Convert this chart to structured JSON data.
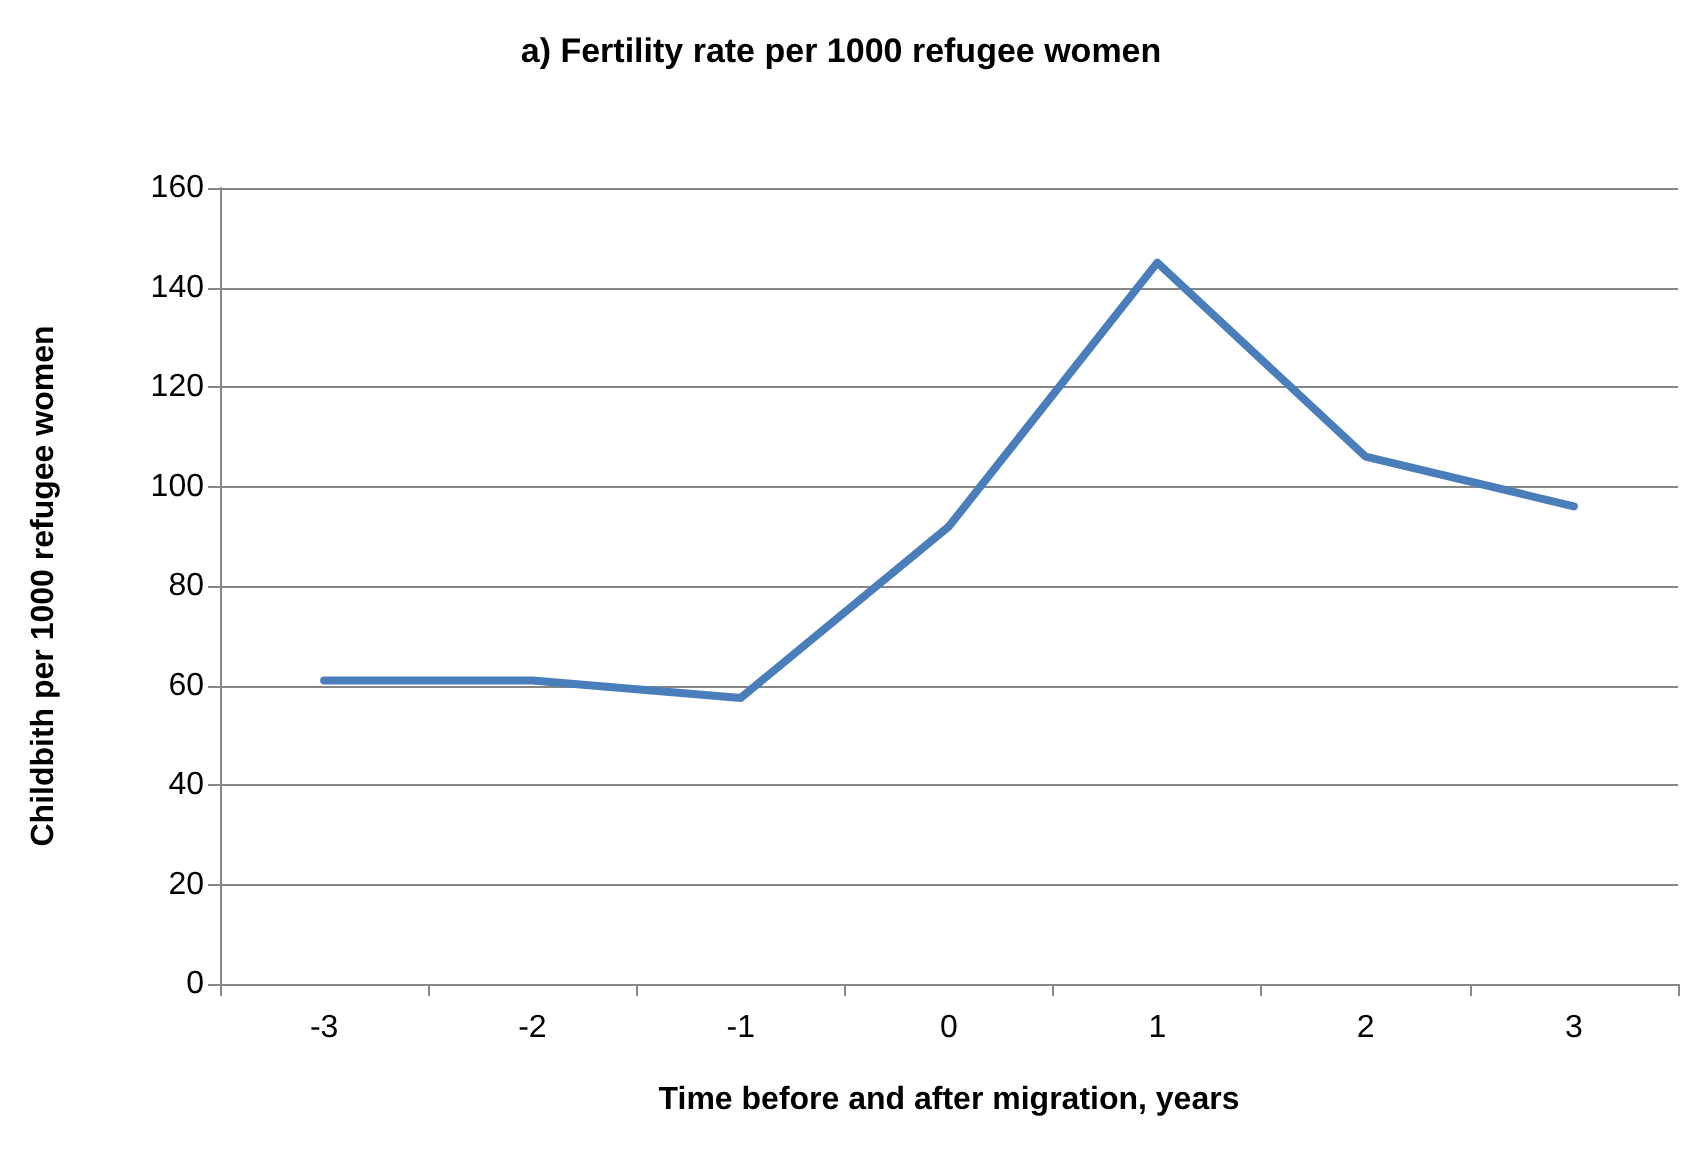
{
  "chart_data": {
    "type": "line",
    "title": "a) Fertility rate per 1000 refugee women",
    "xlabel": "Time before and after migration, years",
    "ylabel": "Childbith per 1000 refugee women",
    "categories": [
      "-3",
      "-2",
      "-1",
      "0",
      "1",
      "2",
      "3"
    ],
    "series": [
      {
        "color": "#4a7ebb",
        "values": [
          61,
          61,
          57.5,
          92,
          145,
          106,
          96
        ]
      }
    ],
    "ylim": [
      0,
      160
    ],
    "yticks": [
      0,
      20,
      40,
      60,
      80,
      100,
      120,
      140,
      160
    ],
    "grid": "y",
    "marker": "none",
    "line_style": "solid"
  }
}
